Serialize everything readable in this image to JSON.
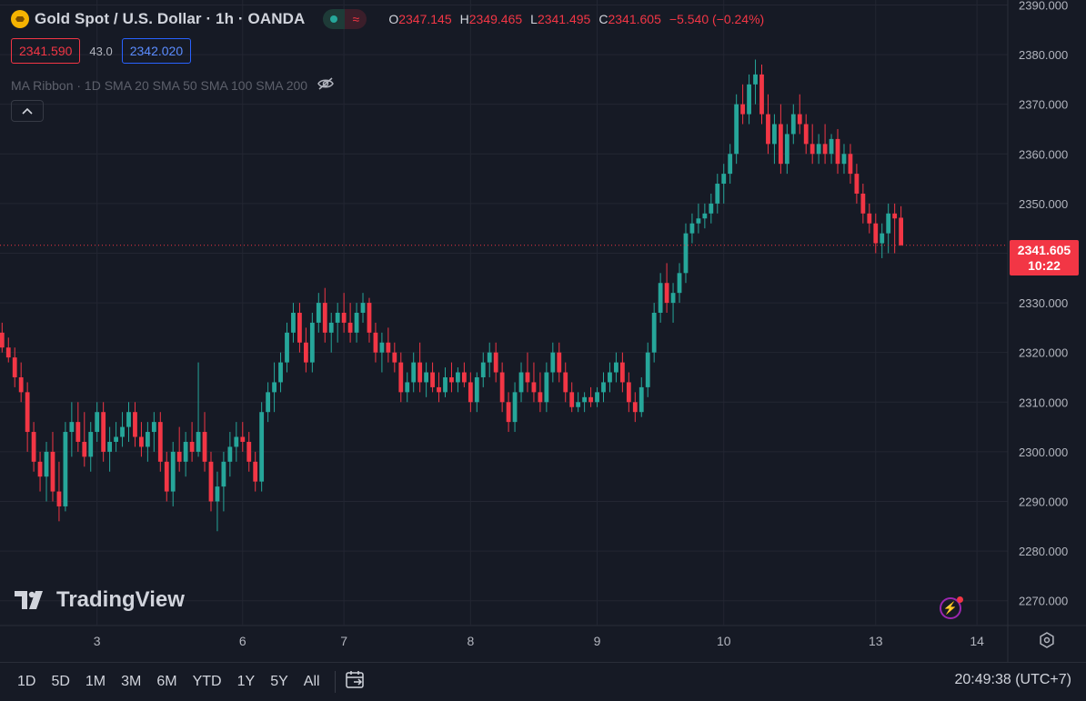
{
  "header": {
    "title": "Gold Spot / U.S. Dollar · 1h · OANDA",
    "ohlc": {
      "o_label": "O",
      "o": "2347.145",
      "h_label": "H",
      "h": "2349.465",
      "l_label": "L",
      "l": "2341.495",
      "c_label": "C",
      "c": "2341.605",
      "change": "−5.540 (−0.24%)"
    },
    "bid": "2341.590",
    "spread": "43.0",
    "ask": "2342.020",
    "indicator": "MA Ribbon · 1D SMA 20 SMA 50 SMA 100 SMA 200",
    "collapse_icon": "chevron-up-icon"
  },
  "price_tag": {
    "price": "2341.605",
    "countdown": "10:22"
  },
  "brand": "TradingView",
  "ranges": [
    "1D",
    "5D",
    "1M",
    "3M",
    "6M",
    "YTD",
    "1Y",
    "5Y",
    "All"
  ],
  "clock": "20:49:38 (UTC+7)",
  "colors": {
    "up": "#26a69a",
    "down": "#f23645",
    "background": "#161a25",
    "grid": "#232632"
  },
  "chart_data": {
    "type": "candlestick",
    "ylim": [
      2265,
      2391
    ],
    "y_ticks": [
      "2390.000",
      "2380.000",
      "2370.000",
      "2360.000",
      "2350.000",
      "2340.000",
      "2330.000",
      "2320.000",
      "2310.000",
      "2300.000",
      "2290.000",
      "2280.000",
      "2270.000"
    ],
    "x_ticks": [
      {
        "label": "3",
        "index": 15
      },
      {
        "label": "6",
        "index": 38
      },
      {
        "label": "7",
        "index": 54
      },
      {
        "label": "8",
        "index": 74
      },
      {
        "label": "9",
        "index": 94
      },
      {
        "label": "10",
        "index": 114
      },
      {
        "label": "13",
        "index": 138
      },
      {
        "label": "14",
        "index": 154
      }
    ],
    "last_price": 2341.605,
    "candles": [
      [
        2324,
        2326,
        2320,
        2321
      ],
      [
        2321,
        2323,
        2318,
        2319
      ],
      [
        2319,
        2321,
        2313,
        2315
      ],
      [
        2315,
        2318,
        2310,
        2312
      ],
      [
        2312,
        2314,
        2300,
        2304
      ],
      [
        2304,
        2306,
        2296,
        2298
      ],
      [
        2298,
        2300,
        2292,
        2295
      ],
      [
        2295,
        2302,
        2290,
        2300
      ],
      [
        2300,
        2304,
        2290,
        2292
      ],
      [
        2292,
        2298,
        2286,
        2289
      ],
      [
        2289,
        2306,
        2288,
        2304
      ],
      [
        2304,
        2310,
        2299,
        2306
      ],
      [
        2306,
        2310,
        2300,
        2302
      ],
      [
        2302,
        2308,
        2297,
        2299
      ],
      [
        2299,
        2306,
        2296,
        2304
      ],
      [
        2304,
        2310,
        2302,
        2308
      ],
      [
        2308,
        2310,
        2298,
        2300
      ],
      [
        2300,
        2305,
        2296,
        2302
      ],
      [
        2302,
        2306,
        2300,
        2303
      ],
      [
        2303,
        2308,
        2301,
        2305
      ],
      [
        2305,
        2310,
        2302,
        2308
      ],
      [
        2308,
        2310,
        2301,
        2303
      ],
      [
        2303,
        2306,
        2299,
        2301
      ],
      [
        2301,
        2306,
        2298,
        2304
      ],
      [
        2304,
        2308,
        2300,
        2306
      ],
      [
        2306,
        2308,
        2296,
        2298
      ],
      [
        2298,
        2300,
        2290,
        2292
      ],
      [
        2292,
        2302,
        2289,
        2300
      ],
      [
        2300,
        2305,
        2296,
        2298
      ],
      [
        2298,
        2304,
        2295,
        2302
      ],
      [
        2302,
        2306,
        2298,
        2300
      ],
      [
        2300,
        2318,
        2299,
        2304
      ],
      [
        2304,
        2308,
        2296,
        2298
      ],
      [
        2298,
        2300,
        2288,
        2290
      ],
      [
        2290,
        2296,
        2284,
        2293
      ],
      [
        2293,
        2300,
        2288,
        2298
      ],
      [
        2298,
        2304,
        2295,
        2301
      ],
      [
        2301,
        2306,
        2298,
        2303
      ],
      [
        2303,
        2306,
        2300,
        2302
      ],
      [
        2302,
        2304,
        2296,
        2298
      ],
      [
        2298,
        2300,
        2292,
        2294
      ],
      [
        2294,
        2310,
        2292,
        2308
      ],
      [
        2308,
        2314,
        2306,
        2312
      ],
      [
        2312,
        2318,
        2308,
        2314
      ],
      [
        2314,
        2320,
        2312,
        2318
      ],
      [
        2318,
        2326,
        2316,
        2324
      ],
      [
        2324,
        2330,
        2322,
        2328
      ],
      [
        2328,
        2330,
        2320,
        2322
      ],
      [
        2322,
        2325,
        2316,
        2318
      ],
      [
        2318,
        2328,
        2316,
        2326
      ],
      [
        2326,
        2332,
        2324,
        2330
      ],
      [
        2330,
        2333,
        2322,
        2324
      ],
      [
        2324,
        2328,
        2320,
        2326
      ],
      [
        2326,
        2330,
        2322,
        2328
      ],
      [
        2328,
        2332,
        2324,
        2326
      ],
      [
        2326,
        2330,
        2322,
        2324
      ],
      [
        2324,
        2330,
        2322,
        2328
      ],
      [
        2328,
        2332,
        2326,
        2330
      ],
      [
        2330,
        2331,
        2322,
        2324
      ],
      [
        2324,
        2326,
        2318,
        2320
      ],
      [
        2320,
        2324,
        2316,
        2322
      ],
      [
        2322,
        2325,
        2318,
        2320
      ],
      [
        2320,
        2322,
        2316,
        2318
      ],
      [
        2318,
        2320,
        2310,
        2312
      ],
      [
        2312,
        2316,
        2310,
        2314
      ],
      [
        2314,
        2320,
        2312,
        2318
      ],
      [
        2318,
        2322,
        2312,
        2314
      ],
      [
        2314,
        2318,
        2311,
        2316
      ],
      [
        2316,
        2318,
        2312,
        2313
      ],
      [
        2313,
        2316,
        2310,
        2312
      ],
      [
        2312,
        2317,
        2311,
        2315
      ],
      [
        2315,
        2318,
        2312,
        2314
      ],
      [
        2314,
        2317,
        2312,
        2316
      ],
      [
        2316,
        2318,
        2313,
        2314
      ],
      [
        2314,
        2316,
        2308,
        2310
      ],
      [
        2310,
        2316,
        2308,
        2315
      ],
      [
        2315,
        2320,
        2313,
        2318
      ],
      [
        2318,
        2322,
        2315,
        2320
      ],
      [
        2320,
        2322,
        2314,
        2316
      ],
      [
        2316,
        2318,
        2308,
        2310
      ],
      [
        2310,
        2312,
        2304,
        2306
      ],
      [
        2306,
        2314,
        2304,
        2312
      ],
      [
        2312,
        2318,
        2310,
        2316
      ],
      [
        2316,
        2320,
        2312,
        2314
      ],
      [
        2314,
        2318,
        2310,
        2312
      ],
      [
        2312,
        2316,
        2308,
        2310
      ],
      [
        2310,
        2318,
        2308,
        2316
      ],
      [
        2316,
        2322,
        2314,
        2320
      ],
      [
        2320,
        2322,
        2314,
        2316
      ],
      [
        2316,
        2318,
        2310,
        2312
      ],
      [
        2312,
        2314,
        2308,
        2309
      ],
      [
        2309,
        2312,
        2308,
        2310
      ],
      [
        2310,
        2312,
        2308,
        2311
      ],
      [
        2311,
        2313,
        2309,
        2310
      ],
      [
        2310,
        2313,
        2309,
        2312
      ],
      [
        2312,
        2316,
        2310,
        2314
      ],
      [
        2314,
        2318,
        2312,
        2316
      ],
      [
        2316,
        2320,
        2314,
        2318
      ],
      [
        2318,
        2320,
        2312,
        2314
      ],
      [
        2314,
        2316,
        2308,
        2310
      ],
      [
        2310,
        2312,
        2306,
        2308
      ],
      [
        2308,
        2315,
        2307,
        2313
      ],
      [
        2313,
        2322,
        2311,
        2320
      ],
      [
        2320,
        2330,
        2318,
        2328
      ],
      [
        2328,
        2336,
        2326,
        2334
      ],
      [
        2334,
        2338,
        2328,
        2330
      ],
      [
        2330,
        2334,
        2326,
        2332
      ],
      [
        2332,
        2338,
        2330,
        2336
      ],
      [
        2336,
        2346,
        2334,
        2344
      ],
      [
        2344,
        2348,
        2342,
        2346
      ],
      [
        2346,
        2350,
        2344,
        2347
      ],
      [
        2347,
        2350,
        2345,
        2348
      ],
      [
        2348,
        2352,
        2346,
        2350
      ],
      [
        2350,
        2356,
        2348,
        2354
      ],
      [
        2354,
        2358,
        2350,
        2356
      ],
      [
        2356,
        2362,
        2354,
        2360
      ],
      [
        2360,
        2372,
        2358,
        2370
      ],
      [
        2370,
        2374,
        2366,
        2368
      ],
      [
        2368,
        2376,
        2366,
        2374
      ],
      [
        2374,
        2379,
        2370,
        2376
      ],
      [
        2376,
        2378,
        2366,
        2368
      ],
      [
        2368,
        2372,
        2360,
        2362
      ],
      [
        2362,
        2368,
        2358,
        2366
      ],
      [
        2366,
        2370,
        2356,
        2358
      ],
      [
        2358,
        2366,
        2356,
        2364
      ],
      [
        2364,
        2370,
        2362,
        2368
      ],
      [
        2368,
        2372,
        2364,
        2366
      ],
      [
        2366,
        2368,
        2360,
        2362
      ],
      [
        2362,
        2366,
        2358,
        2360
      ],
      [
        2360,
        2364,
        2358,
        2362
      ],
      [
        2362,
        2366,
        2358,
        2360
      ],
      [
        2360,
        2364,
        2358,
        2363
      ],
      [
        2363,
        2365,
        2356,
        2358
      ],
      [
        2358,
        2362,
        2356,
        2360
      ],
      [
        2360,
        2362,
        2354,
        2356
      ],
      [
        2356,
        2358,
        2350,
        2352
      ],
      [
        2352,
        2354,
        2346,
        2348
      ],
      [
        2348,
        2350,
        2344,
        2346
      ],
      [
        2346,
        2348,
        2340,
        2342
      ],
      [
        2342,
        2346,
        2339,
        2344
      ],
      [
        2344,
        2350,
        2340,
        2348
      ],
      [
        2348,
        2350,
        2340,
        2347
      ],
      [
        2347.145,
        2349.465,
        2341.495,
        2341.605
      ]
    ]
  }
}
